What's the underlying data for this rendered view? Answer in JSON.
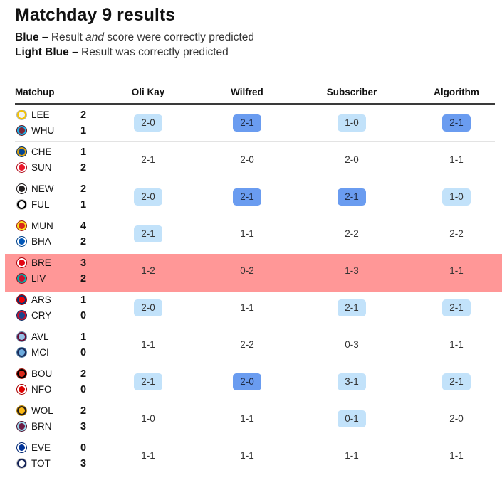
{
  "title": "Matchday 9 results",
  "legend": [
    {
      "key": "Blue –",
      "pre": " Result ",
      "em": "and",
      "post": " score were correctly predicted"
    },
    {
      "key": "Light Blue –",
      "pre": " Result was correctly predicted",
      "em": "",
      "post": ""
    }
  ],
  "colors": {
    "exact": "#6a9cf0",
    "result": "#c2e2fa",
    "highlight": "#ff9797"
  },
  "headers": {
    "matchup": "Matchup",
    "predictors": [
      "Oli Kay",
      "Wilfred",
      "Subscriber",
      "Algorithm"
    ]
  },
  "matches": [
    {
      "home": {
        "abbr": "LEE",
        "goals": "2",
        "color": "#f2f2f2",
        "ring": "#f3c300"
      },
      "away": {
        "abbr": "WHU",
        "goals": "1",
        "color": "#7a263a",
        "ring": "#1bb1e7"
      },
      "highlight": false,
      "predictions": [
        {
          "score": "2-0",
          "status": "result"
        },
        {
          "score": "2-1",
          "status": "exact"
        },
        {
          "score": "1-0",
          "status": "result"
        },
        {
          "score": "2-1",
          "status": "exact"
        }
      ]
    },
    {
      "home": {
        "abbr": "CHE",
        "goals": "1",
        "color": "#034694",
        "ring": "#dba111"
      },
      "away": {
        "abbr": "SUN",
        "goals": "2",
        "color": "#eb172b",
        "ring": "#ffffff"
      },
      "highlight": false,
      "predictions": [
        {
          "score": "2-1",
          "status": "none"
        },
        {
          "score": "2-0",
          "status": "none"
        },
        {
          "score": "2-0",
          "status": "none"
        },
        {
          "score": "1-1",
          "status": "none"
        }
      ]
    },
    {
      "home": {
        "abbr": "NEW",
        "goals": "2",
        "color": "#241f20",
        "ring": "#ffffff"
      },
      "away": {
        "abbr": "FUL",
        "goals": "1",
        "color": "#ffffff",
        "ring": "#000000"
      },
      "highlight": false,
      "predictions": [
        {
          "score": "2-0",
          "status": "result"
        },
        {
          "score": "2-1",
          "status": "exact"
        },
        {
          "score": "2-1",
          "status": "exact"
        },
        {
          "score": "1-0",
          "status": "result"
        }
      ]
    },
    {
      "home": {
        "abbr": "MUN",
        "goals": "4",
        "color": "#da291c",
        "ring": "#fbe122"
      },
      "away": {
        "abbr": "BHA",
        "goals": "2",
        "color": "#0057b8",
        "ring": "#ffffff"
      },
      "highlight": false,
      "predictions": [
        {
          "score": "2-1",
          "status": "result"
        },
        {
          "score": "1-1",
          "status": "none"
        },
        {
          "score": "2-2",
          "status": "none"
        },
        {
          "score": "2-2",
          "status": "none"
        }
      ]
    },
    {
      "home": {
        "abbr": "BRE",
        "goals": "3",
        "color": "#e30613",
        "ring": "#ffffff"
      },
      "away": {
        "abbr": "LIV",
        "goals": "2",
        "color": "#c8102e",
        "ring": "#00b2a9"
      },
      "highlight": true,
      "predictions": [
        {
          "score": "1-2",
          "status": "none"
        },
        {
          "score": "0-2",
          "status": "none"
        },
        {
          "score": "1-3",
          "status": "none"
        },
        {
          "score": "1-1",
          "status": "none"
        }
      ]
    },
    {
      "home": {
        "abbr": "ARS",
        "goals": "1",
        "color": "#ef0107",
        "ring": "#063672"
      },
      "away": {
        "abbr": "CRY",
        "goals": "0",
        "color": "#1b458f",
        "ring": "#c4122e"
      },
      "highlight": false,
      "predictions": [
        {
          "score": "2-0",
          "status": "result"
        },
        {
          "score": "1-1",
          "status": "none"
        },
        {
          "score": "2-1",
          "status": "result"
        },
        {
          "score": "2-1",
          "status": "result"
        }
      ]
    },
    {
      "home": {
        "abbr": "AVL",
        "goals": "1",
        "color": "#95bfe5",
        "ring": "#670e36"
      },
      "away": {
        "abbr": "MCI",
        "goals": "0",
        "color": "#6cabdd",
        "ring": "#1c2c5b"
      },
      "highlight": false,
      "predictions": [
        {
          "score": "1-1",
          "status": "none"
        },
        {
          "score": "2-2",
          "status": "none"
        },
        {
          "score": "0-3",
          "status": "none"
        },
        {
          "score": "1-1",
          "status": "none"
        }
      ]
    },
    {
      "home": {
        "abbr": "BOU",
        "goals": "2",
        "color": "#da291c",
        "ring": "#000000"
      },
      "away": {
        "abbr": "NFO",
        "goals": "0",
        "color": "#dd0000",
        "ring": "#ffffff"
      },
      "highlight": false,
      "predictions": [
        {
          "score": "2-1",
          "status": "result"
        },
        {
          "score": "2-0",
          "status": "exact"
        },
        {
          "score": "3-1",
          "status": "result"
        },
        {
          "score": "2-1",
          "status": "result"
        }
      ]
    },
    {
      "home": {
        "abbr": "WOL",
        "goals": "2",
        "color": "#fdb913",
        "ring": "#231f20"
      },
      "away": {
        "abbr": "BRN",
        "goals": "3",
        "color": "#6c1d45",
        "ring": "#99d6ea"
      },
      "highlight": false,
      "predictions": [
        {
          "score": "1-0",
          "status": "none"
        },
        {
          "score": "1-1",
          "status": "none"
        },
        {
          "score": "0-1",
          "status": "result"
        },
        {
          "score": "2-0",
          "status": "none"
        }
      ]
    },
    {
      "home": {
        "abbr": "EVE",
        "goals": "0",
        "color": "#003399",
        "ring": "#ffffff"
      },
      "away": {
        "abbr": "TOT",
        "goals": "3",
        "color": "#ffffff",
        "ring": "#132257"
      },
      "highlight": false,
      "predictions": [
        {
          "score": "1-1",
          "status": "none"
        },
        {
          "score": "1-1",
          "status": "none"
        },
        {
          "score": "1-1",
          "status": "none"
        },
        {
          "score": "1-1",
          "status": "none"
        }
      ]
    }
  ]
}
